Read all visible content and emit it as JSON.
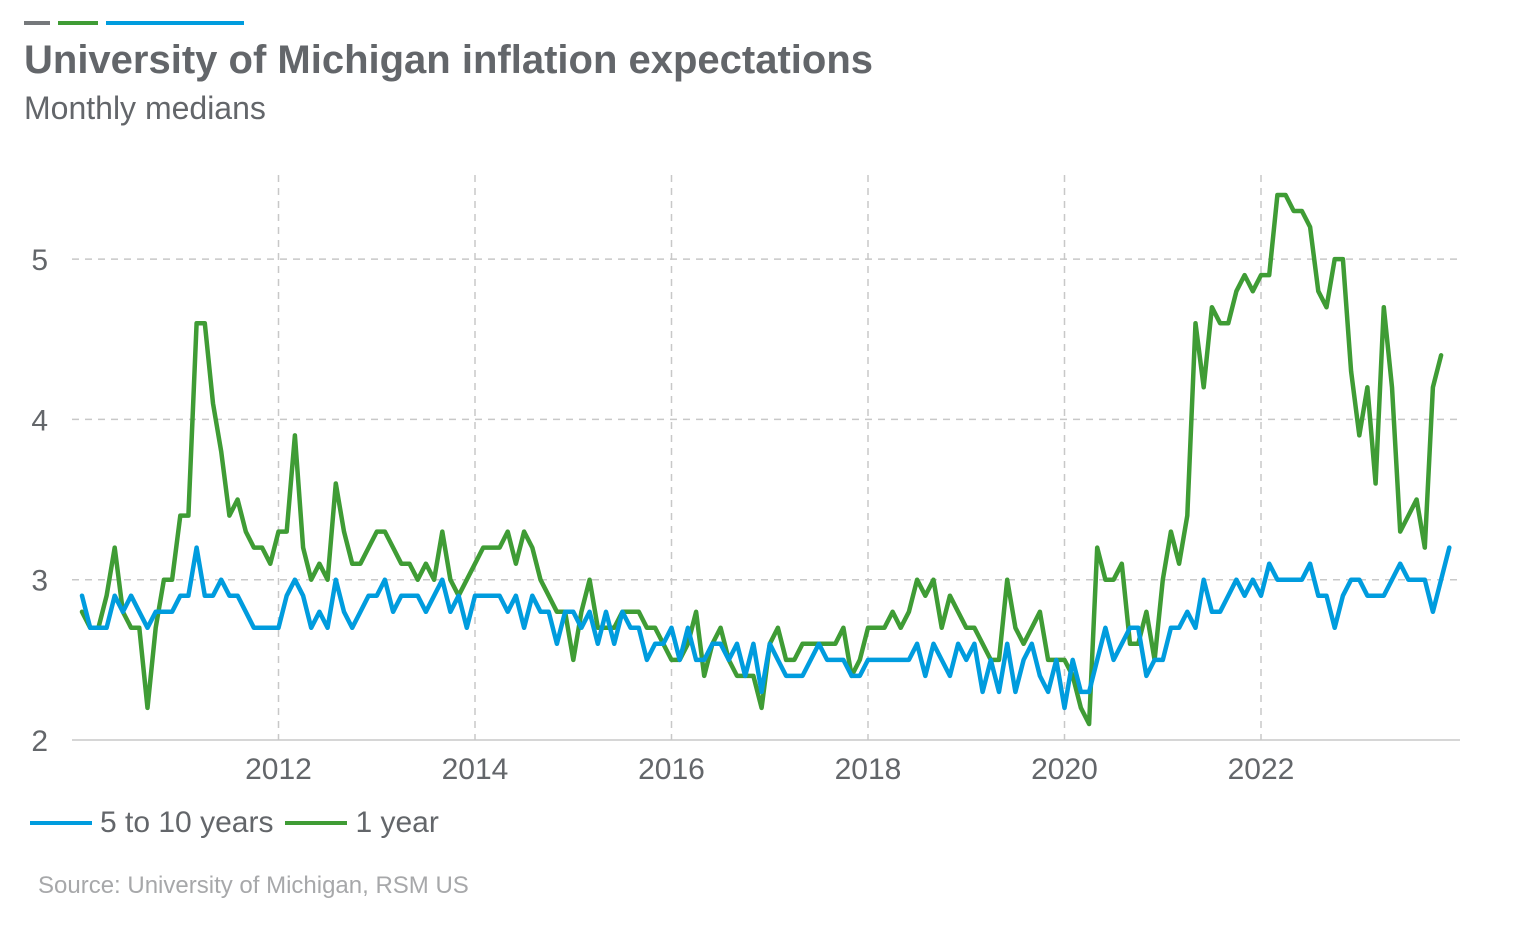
{
  "header": {
    "title": "University of Michigan inflation expectations",
    "subtitle": "Monthly medians"
  },
  "colors": {
    "accent_gray": "#75787b",
    "accent_green": "#3f9c35",
    "accent_blue": "#009cde",
    "text": "#63666a",
    "source_text": "#a7a8aa",
    "grid": "#c8c8c8"
  },
  "footer": {
    "source": "Source: University of Michigan, RSM US"
  },
  "chart_data": {
    "type": "line",
    "title": "University of Michigan inflation expectations",
    "subtitle": "Monthly medians",
    "xlabel": "",
    "ylabel": "",
    "xlim": [
      2010.0,
      2024.0
    ],
    "ylim": [
      2,
      5.5
    ],
    "x_ticks": [
      {
        "value": 2012,
        "label": "2012"
      },
      {
        "value": 2014,
        "label": "2014"
      },
      {
        "value": 2016,
        "label": "2016"
      },
      {
        "value": 2018,
        "label": "2018"
      },
      {
        "value": 2020,
        "label": "2020"
      },
      {
        "value": 2022,
        "label": "2022"
      }
    ],
    "y_ticks": [
      {
        "value": 2,
        "label": "2"
      },
      {
        "value": 3,
        "label": "3"
      },
      {
        "value": 4,
        "label": "4"
      },
      {
        "value": 5,
        "label": "5"
      }
    ],
    "grid": true,
    "legend_position": "bottom-left",
    "x_start": 2010.0,
    "x_step_months": 1,
    "series": [
      {
        "name": "5 to 10 years",
        "color": "#009cde",
        "values": [
          2.9,
          2.7,
          2.7,
          2.7,
          2.9,
          2.8,
          2.9,
          2.8,
          2.7,
          2.8,
          2.8,
          2.8,
          2.9,
          2.9,
          3.2,
          2.9,
          2.9,
          3.0,
          2.9,
          2.9,
          2.8,
          2.7,
          2.7,
          2.7,
          2.7,
          2.9,
          3.0,
          2.9,
          2.7,
          2.8,
          2.7,
          3.0,
          2.8,
          2.7,
          2.8,
          2.9,
          2.9,
          3.0,
          2.8,
          2.9,
          2.9,
          2.9,
          2.8,
          2.9,
          3.0,
          2.8,
          2.9,
          2.7,
          2.9,
          2.9,
          2.9,
          2.9,
          2.8,
          2.9,
          2.7,
          2.9,
          2.8,
          2.8,
          2.6,
          2.8,
          2.8,
          2.7,
          2.8,
          2.6,
          2.8,
          2.6,
          2.8,
          2.7,
          2.7,
          2.5,
          2.6,
          2.6,
          2.7,
          2.5,
          2.7,
          2.5,
          2.5,
          2.6,
          2.6,
          2.5,
          2.6,
          2.4,
          2.6,
          2.3,
          2.6,
          2.5,
          2.4,
          2.4,
          2.4,
          2.5,
          2.6,
          2.5,
          2.5,
          2.5,
          2.4,
          2.4,
          2.5,
          2.5,
          2.5,
          2.5,
          2.5,
          2.5,
          2.6,
          2.4,
          2.6,
          2.5,
          2.4,
          2.6,
          2.5,
          2.6,
          2.3,
          2.5,
          2.3,
          2.6,
          2.3,
          2.5,
          2.6,
          2.4,
          2.3,
          2.5,
          2.2,
          2.5,
          2.3,
          2.3,
          2.5,
          2.7,
          2.5,
          2.6,
          2.7,
          2.7,
          2.4,
          2.5,
          2.5,
          2.7,
          2.7,
          2.8,
          2.7,
          3.0,
          2.8,
          2.8,
          2.9,
          3.0,
          2.9,
          3.0,
          2.9,
          3.1,
          3.0,
          3.0,
          3.0,
          3.0,
          3.1,
          2.9,
          2.9,
          2.7,
          2.9,
          3.0,
          3.0,
          2.9,
          2.9,
          2.9,
          3.0,
          3.1,
          3.0,
          3.0,
          3.0,
          2.8,
          3.0,
          3.2
        ]
      },
      {
        "name": "1 year",
        "color": "#3f9c35",
        "values": [
          2.8,
          2.7,
          2.7,
          2.9,
          3.2,
          2.8,
          2.7,
          2.7,
          2.2,
          2.7,
          3.0,
          3.0,
          3.4,
          3.4,
          4.6,
          4.6,
          4.1,
          3.8,
          3.4,
          3.5,
          3.3,
          3.2,
          3.2,
          3.1,
          3.3,
          3.3,
          3.9,
          3.2,
          3.0,
          3.1,
          3.0,
          3.6,
          3.3,
          3.1,
          3.1,
          3.2,
          3.3,
          3.3,
          3.2,
          3.1,
          3.1,
          3.0,
          3.1,
          3.0,
          3.3,
          3.0,
          2.9,
          3.0,
          3.1,
          3.2,
          3.2,
          3.2,
          3.3,
          3.1,
          3.3,
          3.2,
          3.0,
          2.9,
          2.8,
          2.8,
          2.5,
          2.8,
          3.0,
          2.7,
          2.7,
          2.7,
          2.8,
          2.8,
          2.8,
          2.7,
          2.7,
          2.6,
          2.5,
          2.5,
          2.6,
          2.8,
          2.4,
          2.6,
          2.7,
          2.5,
          2.4,
          2.4,
          2.4,
          2.2,
          2.6,
          2.7,
          2.5,
          2.5,
          2.6,
          2.6,
          2.6,
          2.6,
          2.6,
          2.7,
          2.4,
          2.5,
          2.7,
          2.7,
          2.7,
          2.8,
          2.7,
          2.8,
          3.0,
          2.9,
          3.0,
          2.7,
          2.9,
          2.8,
          2.7,
          2.7,
          2.6,
          2.5,
          2.5,
          3.0,
          2.7,
          2.6,
          2.7,
          2.8,
          2.5,
          2.5,
          2.5,
          2.4,
          2.2,
          2.1,
          3.2,
          3.0,
          3.0,
          3.1,
          2.6,
          2.6,
          2.8,
          2.5,
          3.0,
          3.3,
          3.1,
          3.4,
          4.6,
          4.2,
          4.7,
          4.6,
          4.6,
          4.8,
          4.9,
          4.8,
          4.9,
          4.9,
          5.4,
          5.4,
          5.3,
          5.3,
          5.2,
          4.8,
          4.7,
          5.0,
          5.0,
          4.3,
          3.9,
          4.2,
          3.6,
          4.7,
          4.2,
          3.3,
          3.4,
          3.5,
          3.2,
          4.2,
          4.4
        ]
      }
    ]
  }
}
